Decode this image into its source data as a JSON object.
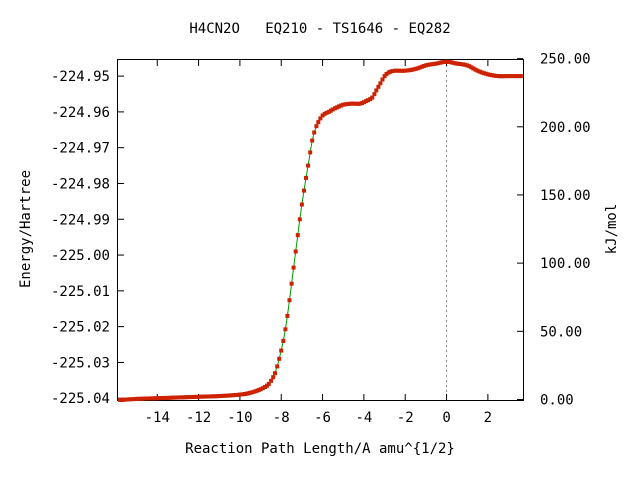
{
  "chart_data": {
    "type": "line",
    "title": "H4CN2O   EQ210 - TS1646 - EQ282",
    "xlabel": "Reaction Path Length/A amu^{1/2}",
    "ylabel": "Energy/Hartree",
    "y2label": "kJ/mol",
    "xlim": [
      -15.9,
      3.7
    ],
    "ylim": [
      -225.0405,
      -224.9455
    ],
    "y2lim": [
      -0.4,
      249.0
    ],
    "x_ticks": [
      -14,
      -12,
      -10,
      -8,
      -6,
      -4,
      -2,
      0,
      2
    ],
    "x_tick_labels": [
      "-14",
      "-12",
      "-10",
      "-8",
      "-6",
      "-4",
      "-2",
      "0",
      "2"
    ],
    "y_ticks": [
      -224.95,
      -224.96,
      -224.97,
      -224.98,
      -224.99,
      -225.0,
      -225.01,
      -225.02,
      -225.03,
      -225.04
    ],
    "y_tick_labels": [
      "-224.95",
      "-224.96",
      "-224.97",
      "-224.98",
      "-224.99",
      "-225.00",
      "-225.01",
      "-225.02",
      "-225.03",
      "-225.04"
    ],
    "y2_ticks": [
      0,
      50,
      100,
      150,
      200,
      250
    ],
    "y2_tick_labels": [
      "0.00",
      "50.00",
      "100.00",
      "150.00",
      "200.00",
      "250.00"
    ],
    "ts_marker_x": 0,
    "grid": false,
    "line_color": "#009900",
    "marker_color": "#cc2200",
    "series": [
      {
        "x": [
          -15.8,
          -15.0,
          -14.0,
          -13.0,
          -12.0,
          -11.0,
          -10.0,
          -9.5,
          -9.0,
          -8.6,
          -8.3,
          -8.1,
          -7.9,
          -7.7,
          -7.5,
          -7.3,
          -7.1,
          -6.9,
          -6.7,
          -6.5,
          -6.3,
          -6.0,
          -5.7,
          -5.4,
          -5.0,
          -4.6,
          -4.2,
          -3.9,
          -3.6,
          -3.4,
          -3.2,
          -3.0,
          -2.8,
          -2.5,
          -2.0,
          -1.5,
          -1.0,
          -0.5,
          0.0,
          0.5,
          1.0,
          1.5,
          2.0,
          2.5,
          3.0,
          3.6
        ],
        "y": [
          -225.0405,
          -225.0402,
          -225.04,
          -225.0398,
          -225.0396,
          -225.0394,
          -225.039,
          -225.0385,
          -225.0375,
          -225.036,
          -225.033,
          -225.029,
          -225.024,
          -225.017,
          -225.008,
          -224.999,
          -224.99,
          -224.982,
          -224.975,
          -224.968,
          -224.964,
          -224.961,
          -224.96,
          -224.959,
          -224.958,
          -224.9577,
          -224.9577,
          -224.957,
          -224.956,
          -224.954,
          -224.952,
          -224.95,
          -224.949,
          -224.9485,
          -224.9485,
          -224.948,
          -224.947,
          -224.9465,
          -224.946,
          -224.9465,
          -224.947,
          -224.9485,
          -224.9495,
          -224.95,
          -224.95,
          -224.95
        ]
      }
    ]
  }
}
